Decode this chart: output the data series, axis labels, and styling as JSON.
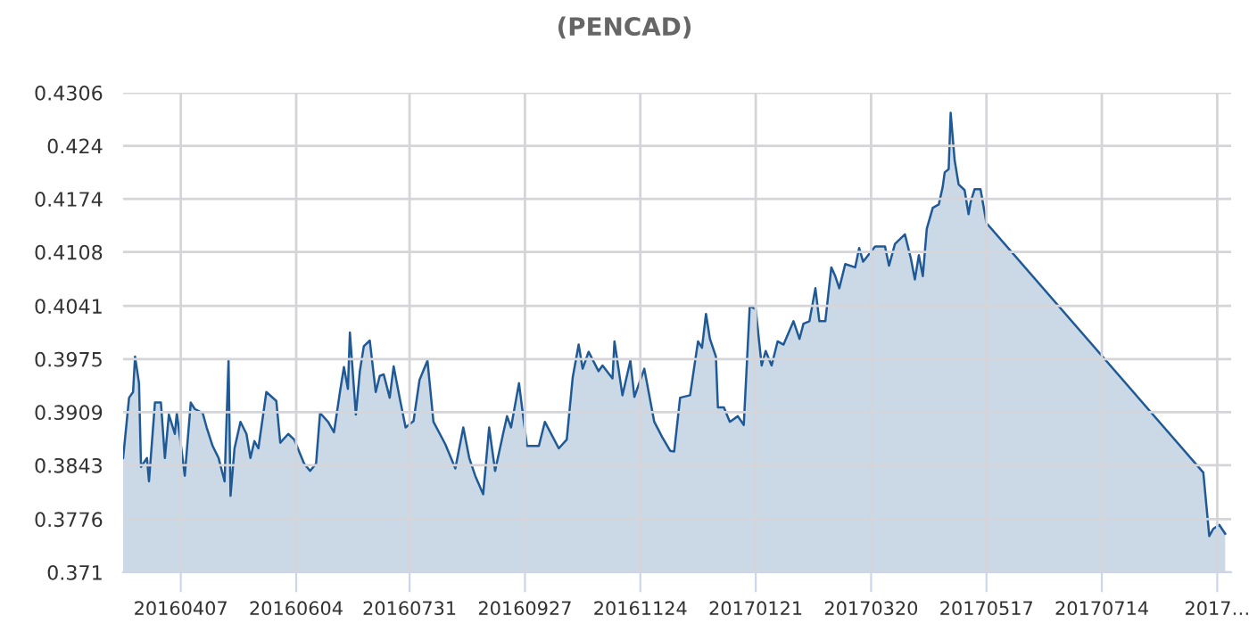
{
  "chart_data": {
    "type": "area",
    "title": "(PENCAD)",
    "xlim": [
      "2016-03-09",
      "2017-09-17"
    ],
    "xticks": [
      {
        "value": "2016-04-07",
        "label": "20160407"
      },
      {
        "value": "2016-06-04",
        "label": "20160604"
      },
      {
        "value": "2016-07-31",
        "label": "20160731"
      },
      {
        "value": "2016-09-27",
        "label": "20160927"
      },
      {
        "value": "2016-11-24",
        "label": "20161124"
      },
      {
        "value": "2017-01-21",
        "label": "20170121"
      },
      {
        "value": "2017-03-20",
        "label": "20170320"
      },
      {
        "value": "2017-05-17",
        "label": "20170517"
      },
      {
        "value": "2017-07-14",
        "label": "20170714"
      },
      {
        "value": "2017-09-10",
        "label": "2017…"
      }
    ],
    "ylim": [
      0.371,
      0.4306
    ],
    "yticks": [
      0.371,
      0.3776,
      0.3843,
      0.3909,
      0.3975,
      0.4041,
      0.4108,
      0.4174,
      0.424,
      0.4306
    ],
    "grid": true,
    "legend": false,
    "series": [
      {
        "color": "#1f5a96",
        "x": [
          "2016-03-09",
          "2016-03-12",
          "2016-03-14",
          "2016-03-15",
          "2016-03-17",
          "2016-03-18",
          "2016-03-21",
          "2016-03-22",
          "2016-03-25",
          "2016-03-28",
          "2016-03-30",
          "2016-04-01",
          "2016-04-04",
          "2016-04-05",
          "2016-04-09",
          "2016-04-12",
          "2016-04-14",
          "2016-04-18",
          "2016-04-20",
          "2016-04-23",
          "2016-04-26",
          "2016-04-29",
          "2016-05-01",
          "2016-05-02",
          "2016-05-04",
          "2016-05-07",
          "2016-05-10",
          "2016-05-12",
          "2016-05-14",
          "2016-05-16",
          "2016-05-20",
          "2016-05-25",
          "2016-05-27",
          "2016-05-31",
          "2016-06-03",
          "2016-06-08",
          "2016-06-11",
          "2016-06-14",
          "2016-06-16",
          "2016-06-20",
          "2016-06-23",
          "2016-06-26",
          "2016-06-28",
          "2016-06-30",
          "2016-07-01",
          "2016-07-04",
          "2016-07-06",
          "2016-07-08",
          "2016-07-11",
          "2016-07-14",
          "2016-07-16",
          "2016-07-18",
          "2016-07-21",
          "2016-07-23",
          "2016-07-26",
          "2016-07-29",
          "2016-08-02",
          "2016-08-05",
          "2016-08-09",
          "2016-08-12",
          "2016-08-18",
          "2016-08-23",
          "2016-08-27",
          "2016-08-30",
          "2016-09-02",
          "2016-09-06",
          "2016-09-09",
          "2016-09-12",
          "2016-09-16",
          "2016-09-18",
          "2016-09-20",
          "2016-09-24",
          "2016-09-28",
          "2016-10-04",
          "2016-10-07",
          "2016-10-14",
          "2016-10-18",
          "2016-10-21",
          "2016-10-24",
          "2016-10-26",
          "2016-10-29",
          "2016-11-03",
          "2016-11-05",
          "2016-11-10",
          "2016-11-11",
          "2016-11-15",
          "2016-11-19",
          "2016-11-21",
          "2016-11-26",
          "2016-12-01",
          "2016-12-05",
          "2016-12-09",
          "2016-12-11",
          "2016-12-14",
          "2016-12-19",
          "2016-12-23",
          "2016-12-25",
          "2016-12-27",
          "2016-12-29",
          "2017-01-01",
          "2017-01-02",
          "2017-01-05",
          "2017-01-08",
          "2017-01-12",
          "2017-01-15",
          "2017-01-18",
          "2017-01-21",
          "2017-01-24",
          "2017-01-26",
          "2017-01-29",
          "2017-02-01",
          "2017-02-04",
          "2017-02-09",
          "2017-02-12",
          "2017-02-14",
          "2017-02-17",
          "2017-02-20",
          "2017-02-22",
          "2017-02-25",
          "2017-02-28",
          "2017-03-02",
          "2017-03-04",
          "2017-03-07",
          "2017-03-12",
          "2017-03-14",
          "2017-03-16",
          "2017-03-22",
          "2017-03-27",
          "2017-03-29",
          "2017-04-01",
          "2017-04-06",
          "2017-04-09",
          "2017-04-11",
          "2017-04-13",
          "2017-04-15",
          "2017-04-17",
          "2017-04-20",
          "2017-04-23",
          "2017-04-25",
          "2017-04-26",
          "2017-04-28",
          "2017-04-29",
          "2017-05-01",
          "2017-05-03",
          "2017-05-06",
          "2017-05-08",
          "2017-05-09",
          "2017-05-11",
          "2017-05-14",
          "2017-05-17",
          "2017-09-03",
          "2017-09-06",
          "2017-09-08",
          "2017-09-11",
          "2017-09-14"
        ],
        "values": [
          0.3852,
          0.3927,
          0.3934,
          0.3978,
          0.3945,
          0.3841,
          0.3852,
          0.3823,
          0.3921,
          0.3921,
          0.3852,
          0.3906,
          0.3882,
          0.3908,
          0.383,
          0.3921,
          0.3913,
          0.3908,
          0.389,
          0.3867,
          0.3852,
          0.3823,
          0.3974,
          0.3805,
          0.3864,
          0.3897,
          0.3882,
          0.3852,
          0.3873,
          0.3864,
          0.3934,
          0.3923,
          0.3871,
          0.3882,
          0.3875,
          0.3845,
          0.3836,
          0.3845,
          0.3908,
          0.3897,
          0.3884,
          0.3934,
          0.3965,
          0.3938,
          0.4008,
          0.3906,
          0.396,
          0.3991,
          0.3998,
          0.3934,
          0.3954,
          0.3956,
          0.3927,
          0.3966,
          0.3927,
          0.389,
          0.3898,
          0.3949,
          0.3973,
          0.3897,
          0.3869,
          0.3839,
          0.389,
          0.3852,
          0.383,
          0.3807,
          0.389,
          0.3836,
          0.3882,
          0.3904,
          0.389,
          0.3945,
          0.3867,
          0.3867,
          0.3897,
          0.3864,
          0.3875,
          0.3952,
          0.3993,
          0.3963,
          0.3984,
          0.396,
          0.3967,
          0.3951,
          0.3997,
          0.393,
          0.3973,
          0.3928,
          0.3963,
          0.3897,
          0.3878,
          0.3861,
          0.386,
          0.3927,
          0.393,
          0.3997,
          0.3989,
          0.4031,
          0.4,
          0.3978,
          0.3915,
          0.3915,
          0.3897,
          0.3904,
          0.3893,
          0.4041,
          0.4037,
          0.3967,
          0.3985,
          0.3967,
          0.3997,
          0.3993,
          0.4022,
          0.4,
          0.4019,
          0.4022,
          0.4063,
          0.4022,
          0.4022,
          0.4089,
          0.4078,
          0.4063,
          0.4093,
          0.4089,
          0.4113,
          0.4096,
          0.4115,
          0.4115,
          0.4091,
          0.4118,
          0.413,
          0.41,
          0.4074,
          0.4104,
          0.4078,
          0.4137,
          0.4163,
          0.4167,
          0.4189,
          0.4207,
          0.4211,
          0.4281,
          0.4222,
          0.4192,
          0.4185,
          0.4155,
          0.417,
          0.4186,
          0.4186,
          0.4144,
          0.3834,
          0.3755,
          0.3764,
          0.3769,
          0.3758
        ]
      }
    ]
  }
}
